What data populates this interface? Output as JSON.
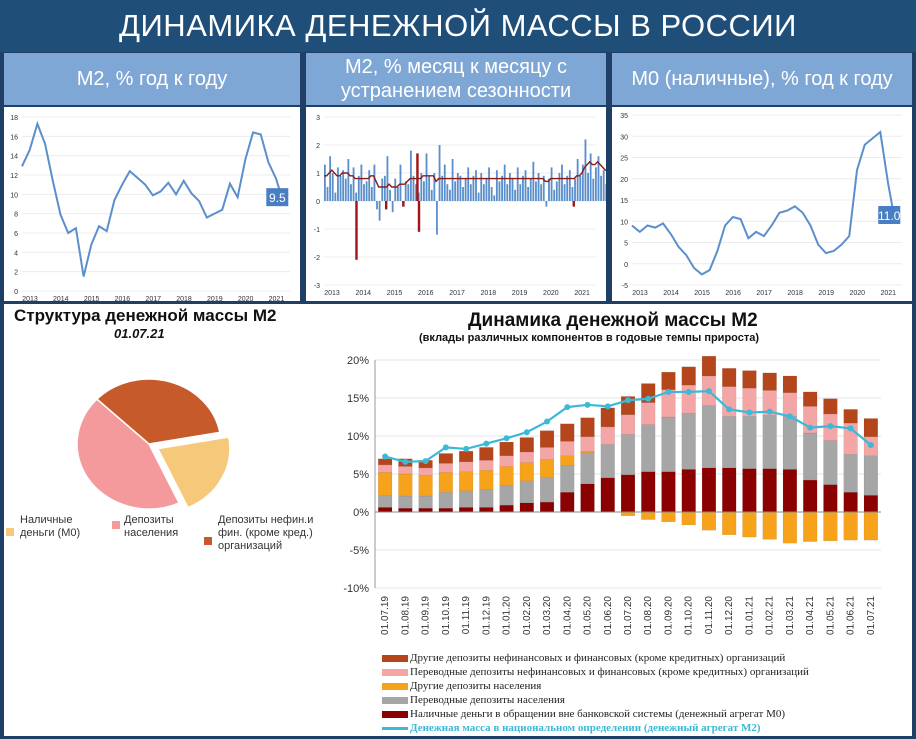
{
  "banner": {
    "title": "ДИНАМИКА ДЕНЕЖНОЙ МАССЫ В РОССИИ"
  },
  "subheaders": [
    "M2, % год к году",
    "M2, % месяц к месяцу с устранением сезонности",
    "M0 (наличные), % год к году"
  ],
  "chart_data": [
    {
      "type": "line",
      "title": "M2, % год к году",
      "x": [
        2013.0,
        2013.25,
        2013.5,
        2013.75,
        2014.0,
        2014.25,
        2014.5,
        2014.75,
        2015.0,
        2015.25,
        2015.5,
        2015.75,
        2016.0,
        2016.25,
        2016.5,
        2016.75,
        2017.0,
        2017.25,
        2017.5,
        2017.75,
        2018.0,
        2018.25,
        2018.5,
        2018.75,
        2019.0,
        2019.25,
        2019.5,
        2019.75,
        2020.0,
        2020.25,
        2020.5,
        2020.75,
        2021.0,
        2021.25,
        2021.45
      ],
      "values": [
        12.9,
        14.6,
        17.3,
        15.2,
        11.4,
        7.9,
        6.0,
        6.5,
        1.5,
        4.8,
        6.7,
        6.2,
        9.4,
        11.0,
        12.4,
        11.7,
        11.0,
        9.9,
        10.3,
        11.2,
        10.0,
        11.4,
        10.1,
        9.3,
        7.6,
        8.0,
        8.4,
        11.1,
        9.7,
        13.6,
        16.4,
        16.2,
        13.3,
        11.6,
        9.5
      ],
      "end_label": "9.5",
      "ylim": [
        0,
        18
      ],
      "yticks": [
        "0",
        "2",
        "4",
        "6",
        "8",
        "10",
        "12",
        "14",
        "16",
        "18"
      ],
      "xticks": [
        "2013",
        "2014",
        "2015",
        "2016",
        "2017",
        "2018",
        "2019",
        "2020",
        "2021"
      ],
      "colors": {
        "line": "#5b8fcc",
        "label_bg": "#4a7ec4"
      }
    },
    {
      "type": "bar",
      "title": "M2, % месяц к месяцу с устранением сезонности",
      "start": 2013.0,
      "bar_values": [
        1.3,
        0.5,
        1.6,
        1.0,
        0.3,
        1.2,
        0.9,
        1.1,
        0.8,
        1.5,
        0.6,
        1.2,
        0.3,
        0.9,
        1.3,
        0.6,
        0.7,
        1.1,
        0.5,
        1.3,
        -0.3,
        -0.7,
        0.8,
        0.9,
        1.6,
        0.4,
        -0.4,
        0.8,
        0.5,
        1.3,
        -0.2,
        0.7,
        0.6,
        1.8,
        0.9,
        0.6,
        0.3,
        1.0,
        0.7,
        1.7,
        0.9,
        0.4,
        1.0,
        -1.2,
        2.0,
        0.9,
        1.3,
        0.6,
        0.4,
        1.5,
        0.7,
        1.0,
        0.9,
        0.5,
        0.8,
        1.2,
        0.6,
        0.9,
        1.1,
        0.3,
        1.0,
        0.6,
        0.8,
        1.2,
        0.5,
        0.2,
        1.1,
        0.7,
        0.9,
        1.3,
        0.6,
        1.0,
        0.8,
        0.4,
        1.2,
        0.6,
        0.9,
        1.1,
        0.5,
        0.8,
        1.4,
        0.7,
        1.0,
        0.6,
        0.9,
        -0.2,
        0.8,
        1.2,
        0.4,
        0.7,
        1.0,
        1.3,
        0.6,
        0.9,
        1.1,
        0.5,
        0.8,
        1.5,
        0.9,
        1.3,
        2.2,
        1.0,
        1.7,
        0.8,
        1.2,
        1.6,
        0.9,
        1.1,
        0.6,
        1.4,
        0.8,
        1.2,
        0.5,
        0.9,
        1.0
      ],
      "ma_values": [
        0.9,
        0.9,
        1.0,
        1.1,
        1.0,
        0.9,
        0.9,
        1.0,
        1.0,
        1.0,
        0.9,
        0.9,
        0.8,
        0.8,
        0.8,
        0.8,
        0.8,
        0.8,
        0.9,
        0.9,
        0.7,
        0.5,
        0.5,
        0.5,
        0.5,
        0.6,
        0.5,
        0.5,
        0.5,
        0.6,
        0.6,
        0.6,
        0.7,
        0.8,
        0.8,
        0.8,
        0.8,
        0.8,
        0.9,
        0.9,
        0.9,
        0.9,
        0.9,
        0.7,
        0.8,
        0.8,
        0.8,
        0.8,
        0.8,
        0.8,
        0.8,
        0.8,
        0.8,
        0.8,
        0.8,
        0.8,
        0.8,
        0.8,
        0.8,
        0.8,
        0.8,
        0.8,
        0.8,
        0.8,
        0.8,
        0.8,
        0.8,
        0.8,
        0.8,
        0.8,
        0.8,
        0.8,
        0.8,
        0.8,
        0.8,
        0.8,
        0.8,
        0.8,
        0.8,
        0.8,
        0.8,
        0.8,
        0.8,
        0.8,
        0.8,
        0.7,
        0.7,
        0.8,
        0.8,
        0.8,
        0.8,
        0.8,
        0.8,
        0.8,
        0.8,
        0.8,
        0.8,
        0.9,
        0.9,
        1.0,
        1.2,
        1.3,
        1.4,
        1.3,
        1.3,
        1.4,
        1.3,
        1.2,
        1.1,
        1.1,
        1.0,
        1.0,
        0.9,
        0.9,
        0.8
      ],
      "red_spikes": [
        {
          "x": 2014.0,
          "value": -2.1
        },
        {
          "x": 2015.95,
          "value": 1.7
        },
        {
          "x": 2016.0,
          "value": -1.1
        },
        {
          "x": 2014.95,
          "value": -0.3
        },
        {
          "x": 2015.5,
          "value": -0.2
        },
        {
          "x": 2020.95,
          "value": -0.2
        }
      ],
      "ylim": [
        -3,
        3
      ],
      "yticks": [
        "-3",
        "-2",
        "-1",
        "0",
        "1",
        "2",
        "3"
      ],
      "xticks": [
        "2013",
        "2014",
        "2015",
        "2016",
        "2017",
        "2018",
        "2019",
        "2020",
        "2021"
      ],
      "colors": {
        "bar": "#5b8fcc",
        "ma": "#8b1a1a",
        "spike": "#a31515"
      }
    },
    {
      "type": "line",
      "title": "M0 (наличные), % год к году",
      "x": [
        2013.0,
        2013.25,
        2013.5,
        2013.75,
        2014.0,
        2014.25,
        2014.5,
        2014.75,
        2015.0,
        2015.25,
        2015.5,
        2015.75,
        2016.0,
        2016.25,
        2016.5,
        2016.75,
        2017.0,
        2017.25,
        2017.5,
        2017.75,
        2018.0,
        2018.25,
        2018.5,
        2018.75,
        2019.0,
        2019.25,
        2019.5,
        2019.75,
        2020.0,
        2020.25,
        2020.5,
        2020.75,
        2021.0,
        2021.25,
        2021.45
      ],
      "values": [
        9.0,
        7.5,
        9.0,
        8.5,
        9.5,
        7.0,
        4.0,
        2.0,
        -1.0,
        -2.5,
        -1.5,
        3.0,
        9.0,
        11.0,
        10.5,
        6.0,
        7.5,
        6.5,
        9.0,
        12.0,
        12.5,
        13.5,
        12.0,
        9.0,
        4.5,
        2.5,
        3.0,
        4.5,
        6.5,
        22.0,
        28.0,
        29.5,
        31.0,
        19.0,
        11.0
      ],
      "end_label": "11.0",
      "ylim": [
        -5,
        35
      ],
      "yticks": [
        "-5",
        "0",
        "5",
        "10",
        "15",
        "20",
        "25",
        "30",
        "35"
      ],
      "xticks": [
        "2013",
        "2014",
        "2015",
        "2016",
        "2017",
        "2018",
        "2019",
        "2020",
        "2021"
      ],
      "colors": {
        "line": "#5b8fcc",
        "label_bg": "#4a7ec4"
      }
    },
    {
      "type": "pie",
      "title": "Структура денежной массы М2",
      "date": "01.07.21",
      "slices": [
        {
          "name": "Наличные деньги (М0)",
          "value": 21,
          "color": "#f6c97a"
        },
        {
          "name": "Депозиты населения",
          "value": 44,
          "color": "#f49a9c"
        },
        {
          "name": "Депозиты нефин.и фин. (кроме кред.) организаций",
          "value": 35,
          "color": "#c75a2a"
        }
      ]
    },
    {
      "type": "bar",
      "title": "Динамика денежной массы М2",
      "subtitle": "(вклады различных компонентов в годовые темпы прироста)",
      "categories": [
        "01.07.19",
        "01.08.19",
        "01.09.19",
        "01.10.19",
        "01.11.19",
        "01.12.19",
        "01.01.20",
        "01.02.20",
        "01.03.20",
        "01.04.20",
        "01.05.20",
        "01.06.20",
        "01.07.20",
        "01.08.20",
        "01.09.20",
        "01.10.20",
        "01.11.20",
        "01.12.20",
        "01.01.21",
        "01.02.21",
        "01.03.21",
        "01.04.21",
        "01.05.21",
        "01.06.21",
        "01.07.21"
      ],
      "series": [
        {
          "name": "Другие депозиты нефинансовых и финансовых (кроме кредитных)  организаций",
          "color": "#b5451b",
          "values": [
            0.8,
            1.0,
            1.0,
            1.3,
            1.4,
            1.7,
            1.8,
            1.9,
            2.2,
            2.3,
            2.5,
            2.5,
            2.4,
            2.5,
            2.3,
            2.4,
            2.6,
            2.4,
            2.3,
            2.3,
            2.2,
            1.9,
            2.0,
            1.8,
            2.4
          ]
        },
        {
          "name": "Переводные депозиты нефинансовых и финансовых (кроме кредитных)  организаций",
          "color": "#f4a6a6",
          "values": [
            1.0,
            1.0,
            1.0,
            1.2,
            1.3,
            1.3,
            1.4,
            1.4,
            1.6,
            1.9,
            1.9,
            2.3,
            2.6,
            2.9,
            3.6,
            3.7,
            3.9,
            3.9,
            3.7,
            3.3,
            3.1,
            3.5,
            3.5,
            4.1,
            2.5
          ]
        },
        {
          "name": "Другие депозиты населения",
          "color": "#f7a21b",
          "values": [
            3.0,
            2.9,
            2.7,
            2.6,
            2.5,
            2.5,
            2.5,
            2.4,
            2.4,
            1.3,
            0.2,
            0.0,
            -0.5,
            -1.0,
            -1.3,
            -1.7,
            -2.4,
            -3.0,
            -3.3,
            -3.6,
            -4.1,
            -3.9,
            -3.8,
            -3.7,
            -3.7
          ]
        },
        {
          "name": "Переводные депозиты населения",
          "color": "#a6a6a6",
          "values": [
            1.6,
            1.6,
            1.6,
            2.1,
            2.2,
            2.4,
            2.6,
            2.9,
            3.2,
            3.5,
            4.1,
            4.4,
            5.3,
            6.2,
            7.2,
            7.4,
            8.2,
            6.8,
            6.9,
            7.0,
            7.0,
            6.2,
            5.8,
            5.0,
            5.2
          ]
        },
        {
          "name": "Наличные деньги в обращении вне банковской системы (денежный агрегат М0)",
          "color": "#8b0000",
          "values": [
            0.6,
            0.5,
            0.5,
            0.5,
            0.6,
            0.6,
            0.9,
            1.2,
            1.3,
            2.6,
            3.7,
            4.5,
            4.9,
            5.3,
            5.3,
            5.6,
            5.8,
            5.8,
            5.7,
            5.7,
            5.6,
            4.2,
            3.6,
            2.6,
            2.2
          ]
        }
      ],
      "line": {
        "name": "Денежная масса в национальном  определении  (денежный агрегат  М2)",
        "color": "#3cb9d6",
        "values": [
          7.3,
          6.6,
          6.7,
          8.5,
          8.3,
          9.0,
          9.7,
          10.5,
          11.9,
          13.8,
          14.1,
          13.9,
          14.7,
          14.9,
          15.8,
          15.8,
          15.9,
          13.5,
          13.1,
          13.2,
          12.6,
          11.1,
          11.3,
          11.0,
          8.8
        ]
      },
      "ylim": [
        -10,
        20
      ],
      "yticks": [
        "-10%",
        "-5%",
        "0%",
        "5%",
        "10%",
        "15%",
        "20%"
      ]
    }
  ],
  "pie_legend": [
    "Наличные деньги (М0)",
    "Депозиты населения",
    "Депозиты нефин.и фин. (кроме кред.) организаций"
  ]
}
